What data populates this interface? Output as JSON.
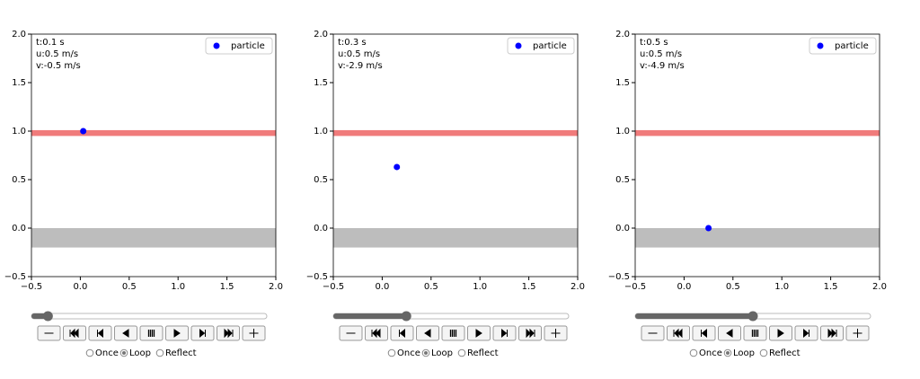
{
  "chart_data": [
    {
      "type": "scatter",
      "annotations": [
        "t:0.1 s",
        "u:0.5 m/s",
        "v:-0.5 m/s"
      ],
      "series": [
        {
          "name": "particle",
          "color": "#0000ff",
          "x": [
            0.03
          ],
          "y": [
            1.0
          ]
        }
      ],
      "spans": [
        {
          "y": [
            -0.2,
            0.0
          ],
          "color": "#bdbdbd"
        },
        {
          "y": [
            0.95,
            1.01
          ],
          "color": "#f07b7b"
        }
      ],
      "xlim": [
        -0.5,
        2.0
      ],
      "ylim": [
        -0.5,
        2.0
      ],
      "xticks": [
        {
          "value": -0.5,
          "label": "−0.5"
        },
        {
          "value": 0,
          "label": "0.0"
        },
        0.5,
        {
          "value": 1,
          "label": "1.0"
        },
        1.5,
        {
          "value": 2,
          "label": "2.0"
        }
      ],
      "yticks": [
        {
          "value": -0.5,
          "label": "−0.5"
        },
        {
          "value": 0,
          "label": "0.0"
        },
        0.5,
        {
          "value": 1,
          "label": "1.0"
        },
        1.5,
        {
          "value": 2,
          "label": "2.0"
        }
      ],
      "legend": "upper right"
    },
    {
      "type": "scatter",
      "annotations": [
        "t:0.3 s",
        "u:0.5 m/s",
        "v:-2.9 m/s"
      ],
      "series": [
        {
          "name": "particle",
          "color": "#0000ff",
          "x": [
            0.15
          ],
          "y": [
            0.63
          ]
        }
      ],
      "spans": [
        {
          "y": [
            -0.2,
            0.0
          ],
          "color": "#bdbdbd"
        },
        {
          "y": [
            0.95,
            1.01
          ],
          "color": "#f07b7b"
        }
      ],
      "xlim": [
        -0.5,
        2.0
      ],
      "ylim": [
        -0.5,
        2.0
      ],
      "xticks": [
        {
          "value": -0.5,
          "label": "−0.5"
        },
        {
          "value": 0,
          "label": "0.0"
        },
        0.5,
        {
          "value": 1,
          "label": "1.0"
        },
        1.5,
        {
          "value": 2,
          "label": "2.0"
        }
      ],
      "yticks": [
        {
          "value": -0.5,
          "label": "−0.5"
        },
        {
          "value": 0,
          "label": "0.0"
        },
        0.5,
        {
          "value": 1,
          "label": "1.0"
        },
        1.5,
        {
          "value": 2,
          "label": "2.0"
        }
      ],
      "legend": "upper right"
    },
    {
      "type": "scatter",
      "annotations": [
        "t:0.5 s",
        "u:0.5 m/s",
        "v:-4.9 m/s"
      ],
      "series": [
        {
          "name": "particle",
          "color": "#0000ff",
          "x": [
            0.25
          ],
          "y": [
            0.0
          ]
        }
      ],
      "spans": [
        {
          "y": [
            -0.2,
            0.0
          ],
          "color": "#bdbdbd"
        },
        {
          "y": [
            0.95,
            1.01
          ],
          "color": "#f07b7b"
        }
      ],
      "xlim": [
        -0.5,
        2.0
      ],
      "ylim": [
        -0.5,
        2.0
      ],
      "xticks": [
        {
          "value": -0.5,
          "label": "−0.5"
        },
        {
          "value": 0,
          "label": "0.0"
        },
        0.5,
        {
          "value": 1,
          "label": "1.0"
        },
        1.5,
        {
          "value": 2,
          "label": "2.0"
        }
      ],
      "yticks": [
        {
          "value": -0.5,
          "label": "−0.5"
        },
        {
          "value": 0,
          "label": "0.0"
        },
        0.5,
        {
          "value": 1,
          "label": "1.0"
        },
        1.5,
        {
          "value": 2,
          "label": "2.0"
        }
      ],
      "legend": "upper right"
    }
  ],
  "controls": {
    "modes": [
      "Once",
      "Loop",
      "Reflect"
    ],
    "selected": 1
  }
}
